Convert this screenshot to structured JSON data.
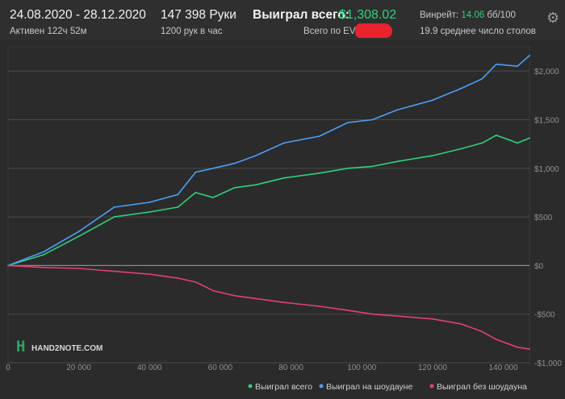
{
  "header": {
    "date_range": "24.08.2020 - 28.12.2020",
    "active_time": "Активен 122ч 52м",
    "hands_total": "147 398 Руки",
    "hands_per_hour": "1200 рук в час",
    "won_total_label": "Выиграл всего:",
    "won_total_value": "$1,308.02",
    "ev_total_label": "Всего по EV:",
    "winrate_label": "Винрейт:",
    "winrate_value": "14.06",
    "winrate_unit": "бб/100",
    "avg_tables": "19.9 среднее число столов"
  },
  "colors": {
    "won_total": "#2fd07a",
    "showdown": "#4a9ff5",
    "non_showdown": "#e2416f",
    "grid": "#4a4a4a",
    "zero_line": "#8a8a8a"
  },
  "icons": {
    "settings": "gear-icon",
    "logo": "hand2note-logo"
  },
  "watermark": "HAND2NOTE.COM",
  "chart_data": {
    "type": "line",
    "xlim": [
      0,
      147398
    ],
    "ylim": [
      -1000,
      2250
    ],
    "x_ticks": [
      0,
      20000,
      40000,
      60000,
      80000,
      100000,
      120000,
      140000
    ],
    "x_tick_labels": [
      "0",
      "20 000",
      "40 000",
      "60 000",
      "80 000",
      "100 000",
      "120 000",
      "140 000"
    ],
    "y_ticks": [
      2000,
      1500,
      1000,
      500,
      0,
      -500,
      -1000
    ],
    "y_tick_labels": [
      "$2,000",
      "$1,500",
      "$1,000",
      "$500",
      "$0",
      "-$500",
      "-$1,000"
    ],
    "grid": true,
    "legend_position": "bottom-right",
    "x": [
      0,
      10000,
      20000,
      30000,
      40000,
      48000,
      53000,
      58000,
      64000,
      70000,
      78000,
      88000,
      96000,
      103000,
      110000,
      120000,
      128000,
      134000,
      138000,
      144000,
      147398
    ],
    "series": [
      {
        "name": "Выиграл всего",
        "color": "#2fd07a",
        "values": [
          0,
          110,
          300,
          500,
          550,
          600,
          750,
          700,
          800,
          830,
          900,
          950,
          1000,
          1020,
          1070,
          1130,
          1200,
          1260,
          1340,
          1260,
          1310
        ]
      },
      {
        "name": "Выиграл на шоудауне",
        "color": "#4a9ff5",
        "values": [
          0,
          140,
          350,
          600,
          650,
          730,
          960,
          1000,
          1050,
          1130,
          1260,
          1330,
          1470,
          1500,
          1600,
          1700,
          1820,
          1920,
          2070,
          2050,
          2160
        ]
      },
      {
        "name": "Выиграл без шоудауна",
        "color": "#e2416f",
        "values": [
          0,
          -20,
          -30,
          -60,
          -90,
          -130,
          -170,
          -260,
          -310,
          -340,
          -380,
          -420,
          -460,
          -500,
          -520,
          -550,
          -600,
          -680,
          -760,
          -840,
          -860
        ]
      }
    ]
  }
}
